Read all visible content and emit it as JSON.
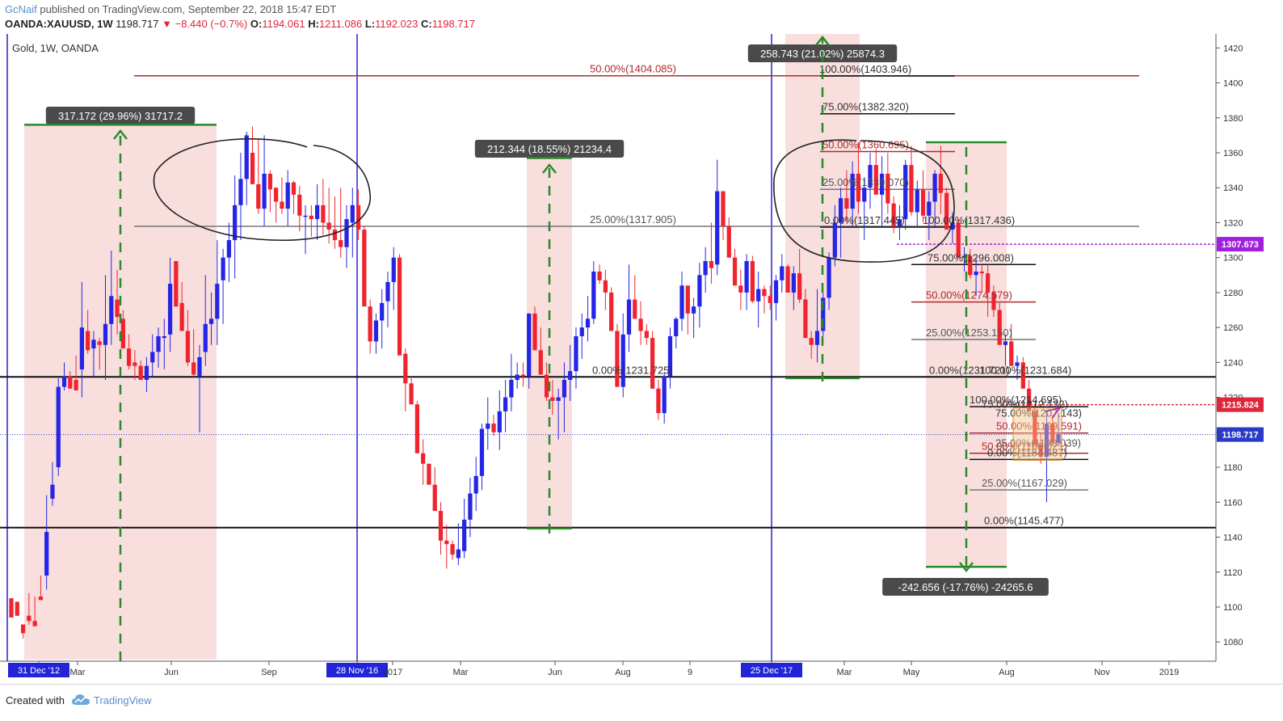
{
  "header": {
    "username": "GcNaif",
    "published_text": "published on TradingView.com, September 22, 2018 15:47 EDT",
    "symbol": "OANDA:XAUUSD, 1W",
    "last": "1198.717",
    "change": "▼ −8.440 (−0.7%)",
    "open_label": "O:",
    "open": "1194.061",
    "high_label": "H:",
    "high": "1211.086",
    "low_label": "L:",
    "low": "1192.023",
    "close_label": "C:",
    "close": "1198.717"
  },
  "legend": {
    "title": "Gold, 1W, OANDA"
  },
  "footer": {
    "created_with": "Created with",
    "brand": "TradingView"
  },
  "colors": {
    "up": "#2525e6",
    "down": "#f0242e",
    "range_fill": "#f9dede",
    "fib_red": "#b02a2a",
    "arrow_green": "#2a8a2a",
    "vline": "#2323d8",
    "badge_bg": "#4a4a4a",
    "price_badge": "#2a3ac7",
    "red_badge": "#e0243a",
    "purple": "#a020e0"
  },
  "chart_data": {
    "type": "candlestick",
    "symbol": "XAUUSD",
    "interval": "1W",
    "ylim": [
      1069,
      1428
    ],
    "y_ticks": [
      1080,
      1100,
      1120,
      1140,
      1160,
      1180,
      1200,
      1220,
      1240,
      1260,
      1280,
      1300,
      1320,
      1340,
      1360,
      1380,
      1400,
      1420
    ],
    "x_ticks": [
      "31 Dec '12",
      "Mar",
      "Jun",
      "Sep",
      "28 Nov '16",
      "2017",
      "Mar",
      "Jun",
      "Aug",
      "9",
      "25 Dec '17",
      "Mar",
      "May",
      "Aug",
      "Nov",
      "2019"
    ],
    "highlighted_x_ticks": [
      "31 Dec '12",
      "28 Nov '16",
      "25 Dec '17"
    ],
    "price_badges": [
      {
        "label": "1307.673",
        "kind": "purple"
      },
      {
        "label": "1215.824",
        "kind": "red"
      },
      {
        "label": "1198.717",
        "kind": "last"
      }
    ],
    "measure_labels": [
      "317.172 (29.96%) 31717.2",
      "212.344 (18.55%) 21234.4",
      "258.743 (21.02%) 25874.3",
      "-242.656 (-17.76%) -24265.6"
    ],
    "fib_labels": [
      "50.00%(1404.085)",
      "100.00%(1403.946)",
      "75.00%(1382.320)",
      "50.00%(1360.695)",
      "25.00%(1339.070)",
      "0.00%(1317.445)",
      "100.00%(1317.436)",
      "25.00%(1317.905)",
      "75.00%(1296.008)",
      "50.00%(1274.579)",
      "25.00%(1253.150)",
      "0.00%(1231.725)",
      "0.00%(1231.721)",
      "100.00%(1231.684)",
      "100.00%(1214.695)",
      "75.00%(1212.132)",
      "75.00%(1207.143)",
      "50.00%(1199.591)",
      "25.00%(1190.039)",
      "50.00%(1188.021)",
      "0.00%(1184.487)",
      "25.00%(1167.029)",
      "0.00%(1145.477)"
    ],
    "horizontal_levels": [
      1404.085,
      1317.905,
      1231.725,
      1145.477
    ],
    "candles": [
      [
        1105,
        1104,
        1094,
        1070
      ],
      [
        1103,
        1100,
        1095,
        1090
      ],
      [
        1090,
        1082,
        1085,
        1080
      ],
      [
        1095,
        1090,
        1092,
        1108
      ],
      [
        1092,
        1095,
        1089,
        1106
      ],
      [
        1106,
        1110,
        1104,
        1118
      ],
      [
        1118,
        1110,
        1143,
        1164
      ],
      [
        1162,
        1158,
        1170,
        1183
      ],
      [
        1180,
        1175,
        1226,
        1231
      ],
      [
        1226,
        1224,
        1232,
        1240
      ],
      [
        1232,
        1226,
        1225,
        1235
      ],
      [
        1230,
        1228,
        1224,
        1244
      ],
      [
        1236,
        1220,
        1260,
        1286
      ],
      [
        1258,
        1245,
        1247,
        1270
      ],
      [
        1248,
        1232,
        1253,
        1258
      ],
      [
        1252,
        1236,
        1250,
        1254
      ],
      [
        1250,
        1230,
        1262,
        1290
      ],
      [
        1262,
        1250,
        1278,
        1304
      ],
      [
        1276,
        1256,
        1266,
        1293
      ],
      [
        1265,
        1255,
        1248,
        1270
      ],
      [
        1248,
        1236,
        1238,
        1256
      ],
      [
        1240,
        1230,
        1238,
        1247
      ],
      [
        1238,
        1230,
        1230,
        1241
      ],
      [
        1230,
        1223,
        1238,
        1243
      ],
      [
        1240,
        1232,
        1246,
        1256
      ],
      [
        1246,
        1237,
        1255,
        1260
      ],
      [
        1254,
        1236,
        1255,
        1265
      ],
      [
        1256,
        1246,
        1285,
        1300
      ],
      [
        1298,
        1288,
        1272,
        1298
      ],
      [
        1274,
        1262,
        1258,
        1286
      ],
      [
        1258,
        1238,
        1240,
        1270
      ],
      [
        1240,
        1232,
        1233,
        1259
      ],
      [
        1232,
        1200,
        1243,
        1250
      ],
      [
        1246,
        1238,
        1262,
        1290
      ],
      [
        1262,
        1250,
        1265,
        1280
      ],
      [
        1265,
        1250,
        1285,
        1310
      ],
      [
        1287,
        1262,
        1300,
        1305
      ],
      [
        1300,
        1286,
        1310,
        1320
      ],
      [
        1310,
        1288,
        1330,
        1347
      ],
      [
        1330,
        1310,
        1345,
        1360
      ],
      [
        1345,
        1330,
        1370,
        1372
      ],
      [
        1360,
        1342,
        1342,
        1375
      ],
      [
        1342,
        1325,
        1328,
        1368
      ],
      [
        1328,
        1318,
        1348,
        1370
      ],
      [
        1348,
        1326,
        1339,
        1350
      ],
      [
        1340,
        1320,
        1332,
        1340
      ],
      [
        1332,
        1325,
        1328,
        1346
      ],
      [
        1328,
        1318,
        1343,
        1350
      ],
      [
        1343,
        1325,
        1336,
        1344
      ],
      [
        1336,
        1315,
        1324,
        1341
      ],
      [
        1324,
        1302,
        1324,
        1330
      ],
      [
        1324,
        1312,
        1322,
        1330
      ],
      [
        1322,
        1310,
        1330,
        1342
      ],
      [
        1330,
        1313,
        1320,
        1345
      ],
      [
        1320,
        1308,
        1316,
        1340
      ],
      [
        1316,
        1305,
        1310,
        1335
      ],
      [
        1310,
        1300,
        1306,
        1340
      ],
      [
        1306,
        1294,
        1322,
        1330
      ],
      [
        1320,
        1300,
        1330,
        1340
      ],
      [
        1330,
        1310,
        1316,
        1339
      ],
      [
        1316,
        1292,
        1272,
        1318
      ],
      [
        1272,
        1245,
        1252,
        1276
      ],
      [
        1252,
        1245,
        1264,
        1268
      ],
      [
        1264,
        1248,
        1274,
        1282
      ],
      [
        1275,
        1260,
        1286,
        1292
      ],
      [
        1286,
        1270,
        1300,
        1306
      ],
      [
        1300,
        1275,
        1244,
        1302
      ],
      [
        1245,
        1212,
        1228,
        1248
      ],
      [
        1228,
        1218,
        1216,
        1232
      ],
      [
        1216,
        1205,
        1188,
        1218
      ],
      [
        1188,
        1170,
        1182,
        1196
      ],
      [
        1182,
        1170,
        1170,
        1176
      ],
      [
        1170,
        1158,
        1155,
        1180
      ],
      [
        1155,
        1130,
        1138,
        1160
      ],
      [
        1138,
        1122,
        1136,
        1147
      ],
      [
        1136,
        1127,
        1130,
        1138
      ],
      [
        1128,
        1124,
        1133,
        1148
      ],
      [
        1132,
        1128,
        1150,
        1162
      ],
      [
        1150,
        1140,
        1165,
        1174
      ],
      [
        1165,
        1155,
        1175,
        1186
      ],
      [
        1175,
        1167,
        1202,
        1205
      ],
      [
        1202,
        1190,
        1205,
        1220
      ],
      [
        1205,
        1198,
        1200,
        1210
      ],
      [
        1200,
        1190,
        1212,
        1224
      ],
      [
        1212,
        1200,
        1220,
        1230
      ],
      [
        1220,
        1212,
        1230,
        1245
      ],
      [
        1230,
        1225,
        1233,
        1240
      ],
      [
        1233,
        1226,
        1232,
        1240
      ],
      [
        1232,
        1225,
        1268,
        1262
      ],
      [
        1268,
        1262,
        1247,
        1272
      ],
      [
        1247,
        1237,
        1233,
        1260
      ],
      [
        1233,
        1218,
        1220,
        1240
      ],
      [
        1220,
        1210,
        1218,
        1230
      ],
      [
        1218,
        1196,
        1220,
        1225
      ],
      [
        1220,
        1200,
        1230,
        1240
      ],
      [
        1230,
        1218,
        1235,
        1250
      ],
      [
        1235,
        1225,
        1255,
        1260
      ],
      [
        1255,
        1242,
        1260,
        1268
      ],
      [
        1260,
        1252,
        1265,
        1278
      ],
      [
        1265,
        1262,
        1292,
        1298
      ],
      [
        1292,
        1285,
        1287,
        1296
      ],
      [
        1287,
        1270,
        1280,
        1293
      ],
      [
        1280,
        1265,
        1258,
        1283
      ],
      [
        1258,
        1226,
        1226,
        1262
      ],
      [
        1226,
        1220,
        1256,
        1268
      ],
      [
        1256,
        1246,
        1276,
        1296
      ],
      [
        1276,
        1268,
        1265,
        1290
      ],
      [
        1265,
        1250,
        1258,
        1275
      ],
      [
        1258,
        1250,
        1254,
        1262
      ],
      [
        1254,
        1240,
        1225,
        1258
      ],
      [
        1225,
        1207,
        1211,
        1230
      ],
      [
        1211,
        1205,
        1232,
        1234
      ],
      [
        1232,
        1225,
        1255,
        1260
      ],
      [
        1255,
        1248,
        1265,
        1266
      ],
      [
        1265,
        1258,
        1284,
        1292
      ],
      [
        1284,
        1256,
        1268,
        1284
      ],
      [
        1268,
        1254,
        1272,
        1277
      ],
      [
        1272,
        1260,
        1290,
        1297
      ],
      [
        1290,
        1280,
        1298,
        1306
      ],
      [
        1298,
        1285,
        1294,
        1320
      ],
      [
        1296,
        1290,
        1338,
        1356
      ],
      [
        1338,
        1310,
        1318,
        1338
      ],
      [
        1318,
        1300,
        1300,
        1323
      ],
      [
        1300,
        1286,
        1284,
        1305
      ],
      [
        1284,
        1270,
        1280,
        1293
      ],
      [
        1280,
        1270,
        1298,
        1302
      ],
      [
        1298,
        1274,
        1275,
        1301
      ],
      [
        1275,
        1260,
        1282,
        1292
      ],
      [
        1282,
        1268,
        1278,
        1284
      ],
      [
        1278,
        1270,
        1274,
        1284
      ],
      [
        1274,
        1264,
        1287,
        1290
      ],
      [
        1287,
        1280,
        1295,
        1302
      ],
      [
        1295,
        1280,
        1280,
        1296
      ],
      [
        1280,
        1270,
        1291,
        1295
      ],
      [
        1291,
        1274,
        1276,
        1305
      ],
      [
        1276,
        1260,
        1254,
        1282
      ],
      [
        1254,
        1242,
        1250,
        1258
      ],
      [
        1250,
        1240,
        1258,
        1282
      ],
      [
        1258,
        1255,
        1277,
        1280
      ],
      [
        1277,
        1270,
        1300,
        1303
      ],
      [
        1300,
        1295,
        1320,
        1330
      ],
      [
        1320,
        1300,
        1334,
        1340
      ],
      [
        1334,
        1320,
        1328,
        1350
      ],
      [
        1328,
        1318,
        1348,
        1355
      ],
      [
        1348,
        1325,
        1332,
        1366
      ],
      [
        1332,
        1310,
        1340,
        1346
      ],
      [
        1340,
        1328,
        1353,
        1360
      ],
      [
        1353,
        1336,
        1336,
        1362
      ],
      [
        1336,
        1318,
        1348,
        1358
      ],
      [
        1348,
        1325,
        1331,
        1360
      ],
      [
        1331,
        1314,
        1318,
        1335
      ],
      [
        1318,
        1310,
        1322,
        1330
      ],
      [
        1322,
        1316,
        1353,
        1356
      ],
      [
        1353,
        1324,
        1326,
        1364
      ],
      [
        1326,
        1318,
        1339,
        1344
      ],
      [
        1339,
        1320,
        1324,
        1350
      ],
      [
        1324,
        1310,
        1332,
        1338
      ],
      [
        1332,
        1318,
        1348,
        1350
      ],
      [
        1348,
        1325,
        1337,
        1364
      ],
      [
        1337,
        1318,
        1316,
        1340
      ],
      [
        1316,
        1308,
        1320,
        1326
      ],
      [
        1320,
        1308,
        1300,
        1322
      ],
      [
        1300,
        1292,
        1301,
        1306
      ],
      [
        1301,
        1288,
        1290,
        1305
      ],
      [
        1290,
        1278,
        1292,
        1300
      ],
      [
        1292,
        1280,
        1291,
        1296
      ],
      [
        1291,
        1266,
        1280,
        1296
      ],
      [
        1280,
        1266,
        1270,
        1284
      ],
      [
        1270,
        1255,
        1250,
        1274
      ],
      [
        1250,
        1238,
        1252,
        1256
      ],
      [
        1252,
        1240,
        1238,
        1262
      ],
      [
        1238,
        1230,
        1240,
        1244
      ],
      [
        1240,
        1225,
        1225,
        1243
      ],
      [
        1225,
        1212,
        1212,
        1230
      ],
      [
        1212,
        1195,
        1193,
        1216
      ],
      [
        1193,
        1182,
        1186,
        1200
      ],
      [
        1186,
        1160,
        1205,
        1212
      ],
      [
        1205,
        1194,
        1194,
        1210
      ],
      [
        1194,
        1192,
        1199,
        1211
      ]
    ]
  }
}
